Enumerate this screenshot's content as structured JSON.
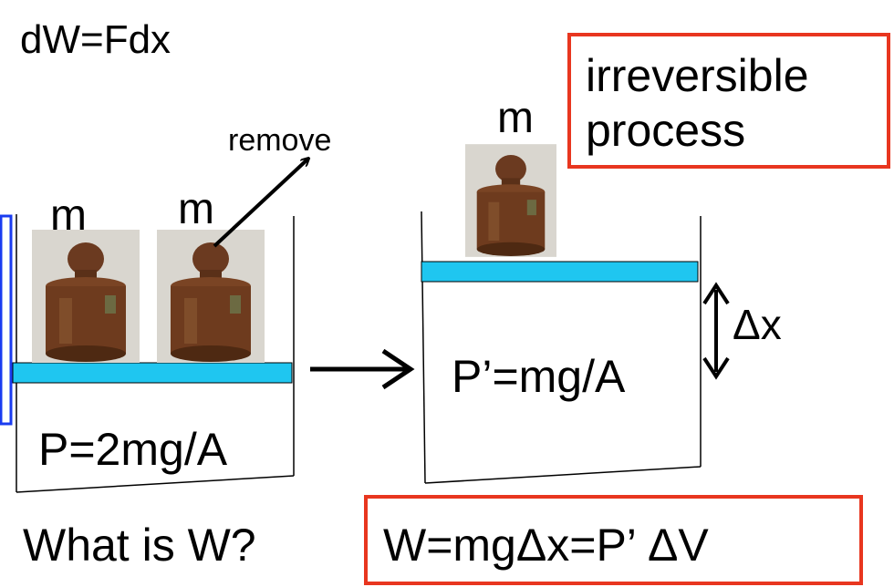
{
  "formula": "dW=Fdx",
  "note_box": {
    "lines": [
      "irreversible",
      "process"
    ]
  },
  "remove_label": "remove",
  "masses": [
    "m",
    "m",
    "m"
  ],
  "initial_pressure": "P=2mg/A",
  "final_pressure": "P’=mg/A",
  "displacement": "Δx",
  "question": "What is W?",
  "answer": "W=mgΔx=P’ ΔV"
}
